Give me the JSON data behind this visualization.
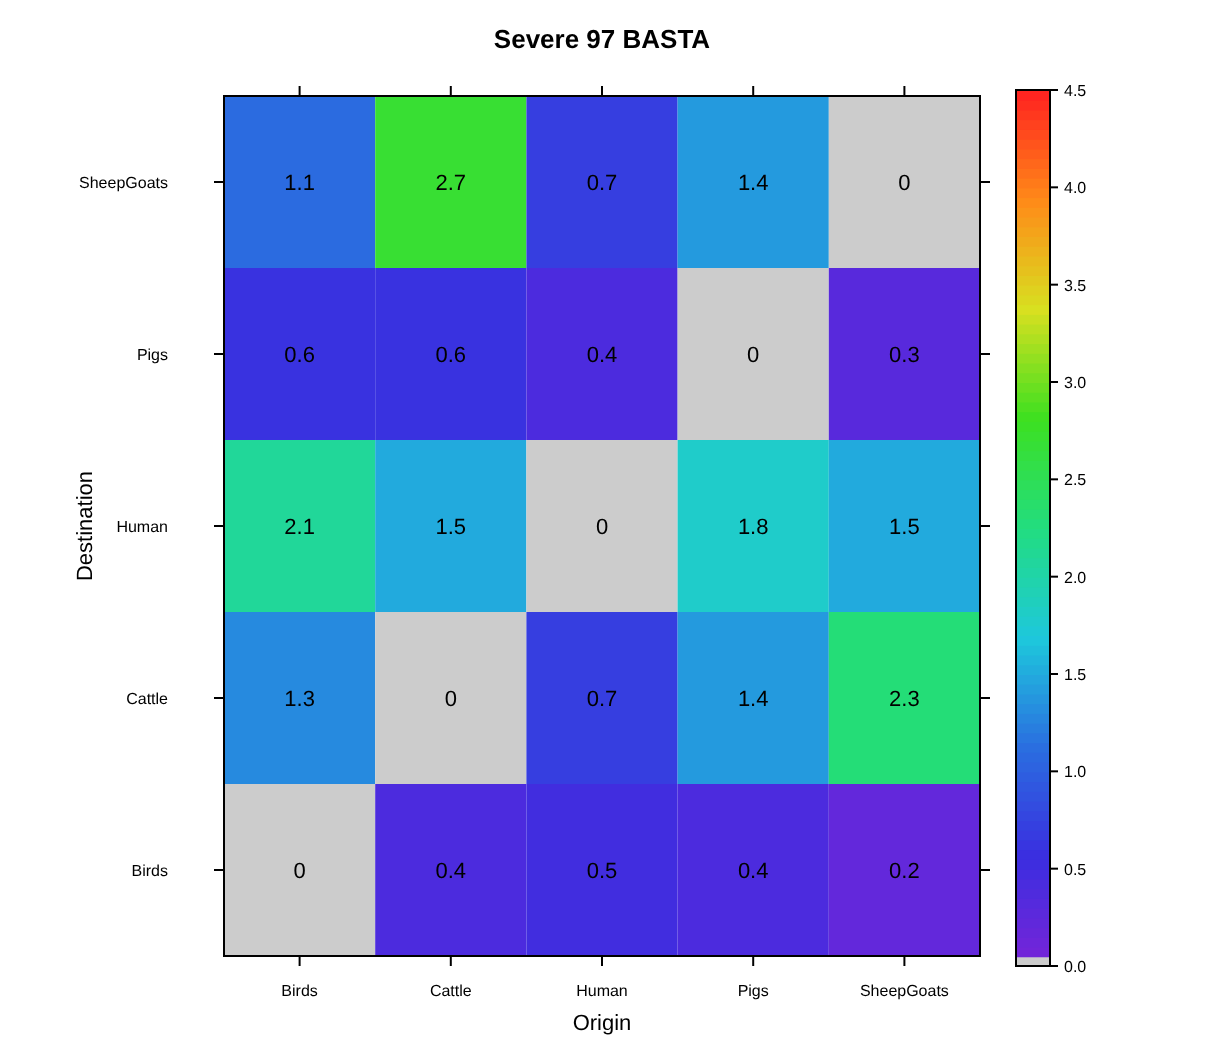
{
  "chart_data": {
    "type": "heatmap",
    "title": "Severe 97 BASTA",
    "xlabel": "Origin",
    "ylabel": "Destination",
    "categories": [
      "Birds",
      "Cattle",
      "Human",
      "Pigs",
      "SheepGoats"
    ],
    "y_categories": [
      "SheepGoats",
      "Pigs",
      "Human",
      "Cattle",
      "Birds"
    ],
    "cells": [
      [
        1.1,
        2.7,
        0.7,
        1.4,
        0
      ],
      [
        0.6,
        0.6,
        0.4,
        0,
        0.3
      ],
      [
        2.1,
        1.5,
        0,
        1.8,
        1.5
      ],
      [
        1.3,
        0,
        0.7,
        1.4,
        2.3
      ],
      [
        0,
        0.4,
        0.5,
        0.4,
        0.2
      ]
    ],
    "data_labels": true,
    "clim": [
      0,
      4.5
    ],
    "cticks": [
      {
        "value": 0,
        "label": "0.0"
      },
      {
        "value": 0.5,
        "label": "0.5"
      },
      {
        "value": 1,
        "label": "1.0"
      },
      {
        "value": 1.5,
        "label": "1.5"
      },
      {
        "value": 2,
        "label": "2.0"
      },
      {
        "value": 2.5,
        "label": "2.5"
      },
      {
        "value": 3,
        "label": "3.0"
      },
      {
        "value": 3.5,
        "label": "3.5"
      },
      {
        "value": 4,
        "label": "4.0"
      },
      {
        "value": 4.5,
        "label": "4.5"
      }
    ]
  }
}
